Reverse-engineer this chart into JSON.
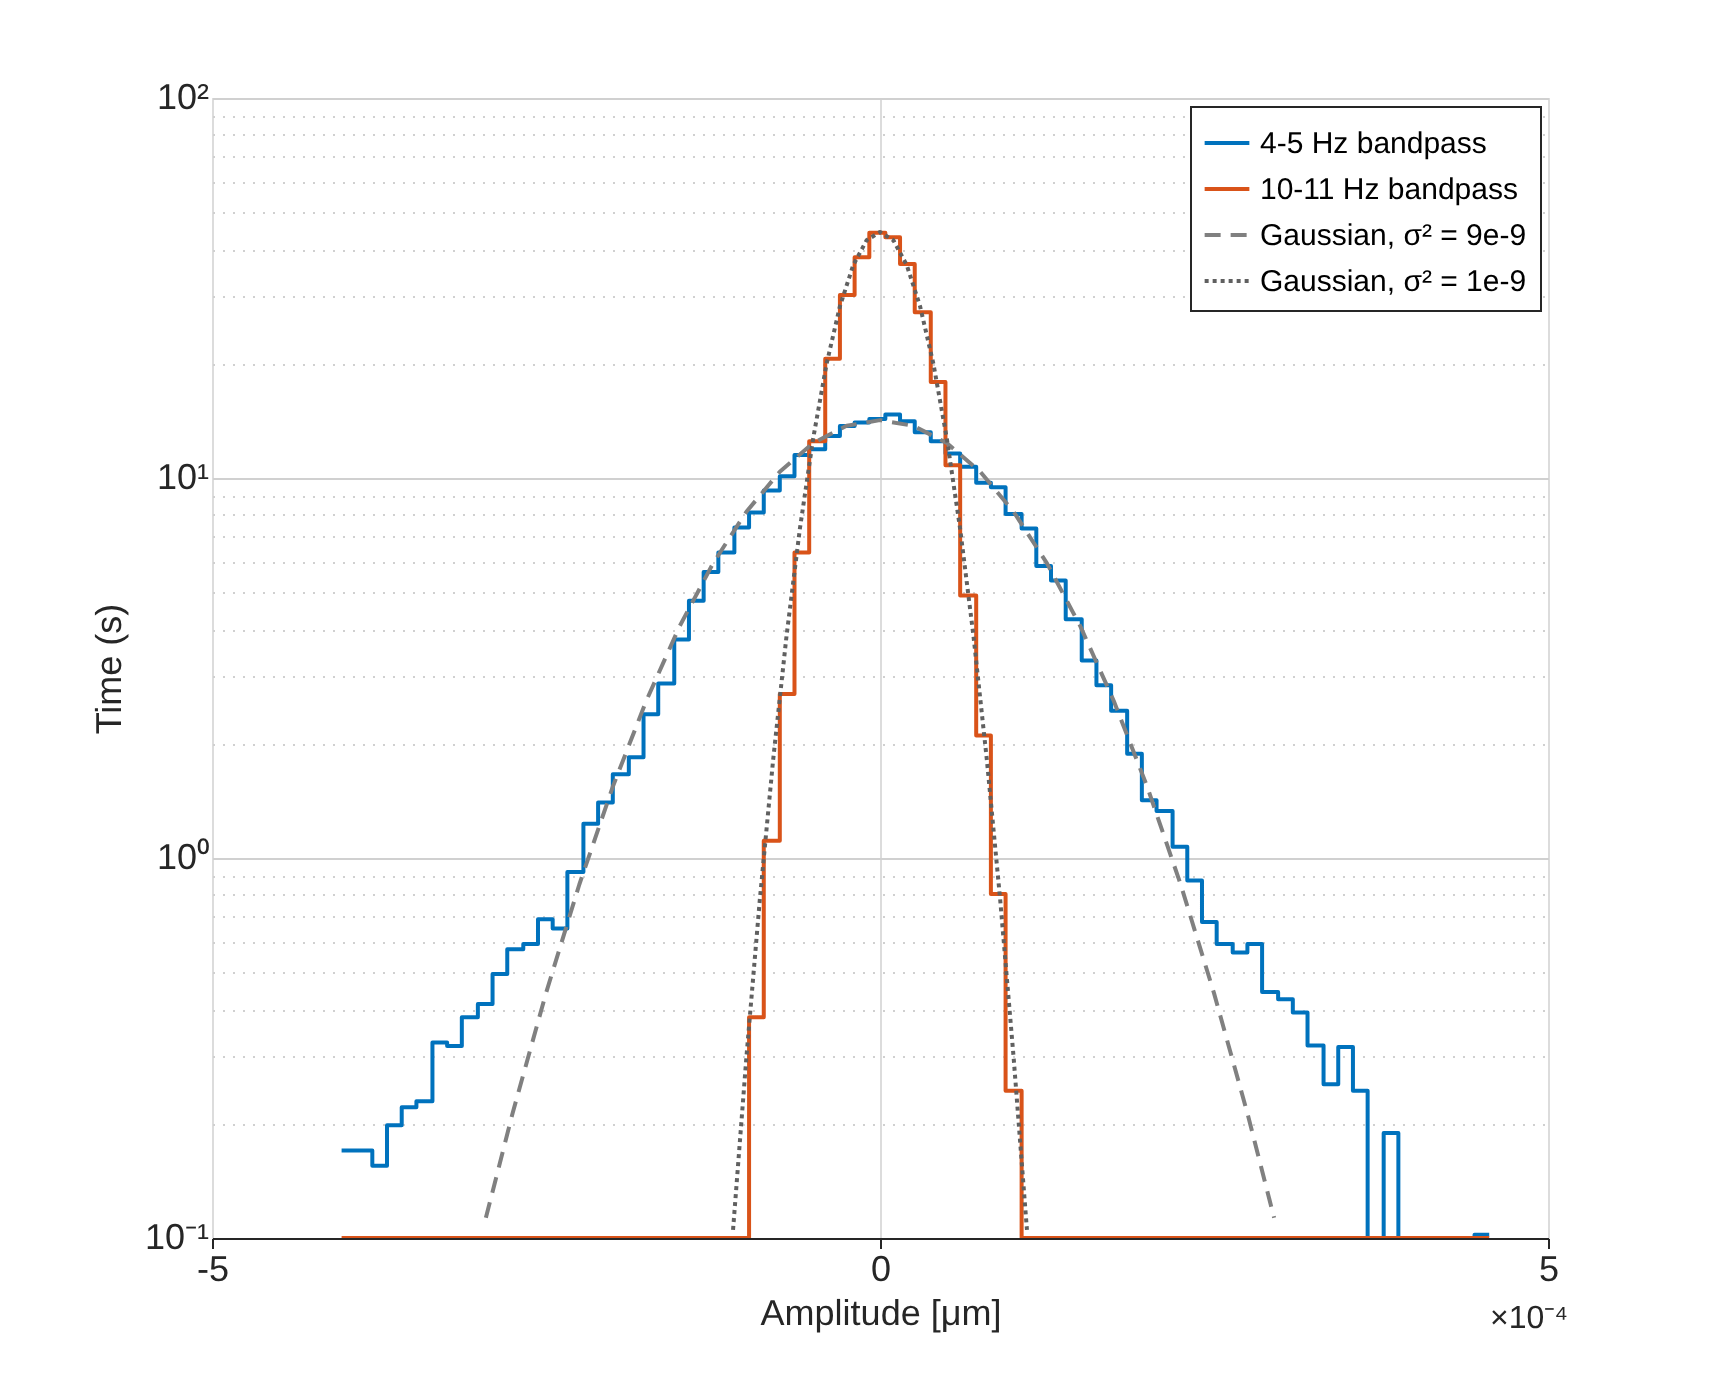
{
  "chart_data": {
    "type": "histogram",
    "xlabel": "Amplitude [μm]",
    "ylabel": "Time (s)",
    "log": "y",
    "xlim": [
      -5,
      5
    ],
    "xticks": [
      -5,
      0,
      5
    ],
    "ylim": [
      0.1,
      100
    ],
    "yticks": [
      {
        "value": 0.1,
        "label": "10⁻¹"
      },
      {
        "value": 0.2,
        "label": null
      },
      {
        "value": 0.3,
        "label": null
      },
      {
        "value": 0.4,
        "label": null
      },
      {
        "value": 0.5,
        "label": null
      },
      {
        "value": 0.6,
        "label": null
      },
      {
        "value": 0.7,
        "label": null
      },
      {
        "value": 0.8,
        "label": null
      },
      {
        "value": 0.9,
        "label": null
      },
      {
        "value": 1,
        "label": "10⁰"
      },
      {
        "value": 2,
        "label": null
      },
      {
        "value": 3,
        "label": null
      },
      {
        "value": 4,
        "label": null
      },
      {
        "value": 5,
        "label": null
      },
      {
        "value": 6,
        "label": null
      },
      {
        "value": 7,
        "label": null
      },
      {
        "value": 8,
        "label": null
      },
      {
        "value": 9,
        "label": null
      },
      {
        "value": 10,
        "label": "10¹"
      },
      {
        "value": 20,
        "label": null
      },
      {
        "value": 30,
        "label": null
      },
      {
        "value": 40,
        "label": null
      },
      {
        "value": 50,
        "label": null
      },
      {
        "value": 60,
        "label": null
      },
      {
        "value": 70,
        "label": null
      },
      {
        "value": 80,
        "label": null
      },
      {
        "value": 90,
        "label": null
      },
      {
        "value": 100,
        "label": "10²"
      }
    ],
    "grid": true,
    "legend": "top right",
    "annotations": [
      "×10⁻⁴"
    ],
    "bins": [
      -4.03,
      -3.92,
      -3.8,
      -3.69,
      -3.58,
      -3.47,
      -3.35,
      -3.24,
      -3.13,
      -3.01,
      -2.9,
      -2.79,
      -2.67,
      -2.56,
      -2.45,
      -2.34,
      -2.22,
      -2.11,
      -2.0,
      -1.88,
      -1.77,
      -1.66,
      -1.54,
      -1.43,
      -1.32,
      -1.21,
      -1.09,
      -0.98,
      -0.87,
      -0.75,
      -0.64,
      -0.53,
      -0.41,
      -0.3,
      -0.19,
      -0.08,
      0.04,
      0.15,
      0.26,
      0.38,
      0.49,
      0.6,
      0.72,
      0.83,
      0.94,
      1.06,
      1.17,
      1.28,
      1.39,
      1.51,
      1.62,
      1.73,
      1.85,
      1.96,
      2.07,
      2.19,
      2.3,
      2.41,
      2.52,
      2.64,
      2.75,
      2.86,
      2.98,
      3.09,
      3.2,
      3.32,
      3.43,
      3.54,
      3.65,
      3.77,
      3.88,
      3.99,
      4.11,
      4.22,
      4.33,
      4.45,
      4.56
    ],
    "series": [
      {
        "name": "4-5 Hz bandpass",
        "color": "#0072bd",
        "line_style": "solid",
        "values": [
          0.17,
          0.17,
          0.155,
          0.198,
          0.221,
          0.229,
          0.327,
          0.32,
          0.381,
          0.413,
          0.495,
          0.575,
          0.594,
          0.69,
          0.652,
          0.918,
          1.23,
          1.4,
          1.66,
          1.84,
          2.39,
          2.88,
          3.76,
          4.75,
          5.66,
          6.37,
          7.41,
          8.11,
          9.27,
          10.1,
          11.5,
          11.9,
          12.9,
          13.7,
          14.0,
          14.3,
          14.7,
          14.1,
          13.2,
          12.5,
          11.6,
          10.7,
          9.72,
          9.45,
          8.04,
          7.36,
          5.87,
          5.37,
          4.25,
          3.31,
          2.85,
          2.44,
          1.88,
          1.42,
          1.33,
          1.07,
          0.872,
          0.679,
          0.594,
          0.564,
          0.594,
          0.444,
          0.425,
          0.392,
          0.321,
          0.254,
          0.318,
          0.244,
          null,
          0.189,
          null,
          null,
          null,
          null,
          null,
          0.102
        ]
      },
      {
        "name": "10-11 Hz bandpass",
        "color": "#d95319",
        "line_style": "solid",
        "values": [
          null,
          null,
          null,
          null,
          null,
          null,
          null,
          null,
          null,
          null,
          null,
          null,
          null,
          null,
          null,
          null,
          null,
          null,
          null,
          null,
          null,
          null,
          null,
          null,
          null,
          null,
          null,
          0.381,
          1.11,
          2.7,
          6.37,
          12.5,
          20.6,
          30.3,
          38.1,
          44.2,
          43.0,
          36.6,
          27.3,
          17.9,
          10.8,
          4.91,
          2.1,
          0.804,
          0.244,
          null,
          null,
          null,
          null,
          null,
          null,
          null,
          null,
          null,
          null,
          null,
          null,
          null,
          null,
          null,
          null,
          null,
          null,
          null,
          null,
          null,
          null,
          null,
          null,
          null,
          null,
          null,
          null,
          null,
          null,
          null
        ]
      },
      {
        "name": "Gaussian, σ² = 9e-9",
        "color": "#808080",
        "type": "line",
        "line_style": "dashed",
        "x": [
          -2.95,
          -2.75,
          -2.5,
          -2.25,
          -2,
          -1.75,
          -1.5,
          -1.25,
          -1,
          -0.75,
          -0.5,
          -0.25,
          0,
          0.25,
          0.5,
          0.75,
          1,
          1.25,
          1.5,
          1.75,
          2,
          2.25,
          2.5,
          2.75,
          2.95
        ],
        "values": [
          0.113,
          0.213,
          0.441,
          0.853,
          1.54,
          2.59,
          4.07,
          5.96,
          8.15,
          10.39,
          12.36,
          13.72,
          14.2,
          13.72,
          12.36,
          10.39,
          8.15,
          5.96,
          4.07,
          2.59,
          1.54,
          0.853,
          0.441,
          0.213,
          0.113
        ]
      },
      {
        "name": "Gaussian, σ² = 1e-9",
        "color": "#606060",
        "type": "line",
        "line_style": "dotted",
        "x": [
          -1.1,
          -1,
          -0.9,
          -0.8,
          -0.7,
          -0.6,
          -0.5,
          -0.4,
          -0.3,
          -0.2,
          -0.1,
          0,
          0.1,
          0.2,
          0.3,
          0.4,
          0.5,
          0.6,
          0.7,
          0.8,
          0.9,
          1,
          1.1
        ],
        "values": [
          0.105,
          0.299,
          0.774,
          1.81,
          3.83,
          7.34,
          12.72,
          19.95,
          28.31,
          36.35,
          42.23,
          44.4,
          42.23,
          36.35,
          28.31,
          19.95,
          12.72,
          7.34,
          3.83,
          1.81,
          0.774,
          0.299,
          0.105
        ]
      }
    ]
  }
}
